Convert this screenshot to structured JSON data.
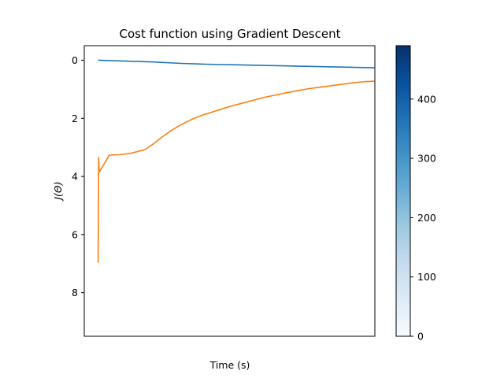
{
  "chart_data": {
    "type": "line",
    "title": "Cost function using Gradient Descent",
    "xlabel": "Time (s)",
    "ylabel": "J(Θ)",
    "y_axis_inverted": true,
    "ylim": [
      9.5,
      -0.5
    ],
    "yticks": [
      0,
      2,
      4,
      6,
      8
    ],
    "xticks": [],
    "xlim": [
      -25,
      500
    ],
    "grid": false,
    "legend": "none",
    "colors": {
      "series_1": "#1f77b4",
      "series_2": "#ff7f0e"
    },
    "series": [
      {
        "x": [
          0,
          50,
          100,
          150,
          200,
          250,
          300,
          350,
          400,
          450,
          499
        ],
        "values": [
          0.0,
          0.03,
          0.06,
          0.11,
          0.14,
          0.16,
          0.18,
          0.2,
          0.22,
          0.24,
          0.26
        ]
      },
      {
        "x": [
          0,
          1,
          2,
          10,
          20,
          40,
          60,
          70,
          85,
          100,
          115,
          130,
          145,
          160,
          170,
          180,
          190,
          200,
          220,
          240,
          260,
          280,
          300,
          320,
          340,
          360,
          380,
          400,
          420,
          440,
          460,
          480,
          499
        ],
        "values": [
          6.97,
          3.35,
          3.85,
          3.6,
          3.27,
          3.25,
          3.2,
          3.15,
          3.07,
          2.88,
          2.65,
          2.45,
          2.27,
          2.12,
          2.03,
          1.95,
          1.88,
          1.82,
          1.7,
          1.58,
          1.48,
          1.38,
          1.28,
          1.2,
          1.12,
          1.05,
          0.98,
          0.93,
          0.88,
          0.83,
          0.78,
          0.74,
          0.72
        ]
      }
    ]
  },
  "colorbar": {
    "colormap": "Blues",
    "range": [
      0,
      490
    ],
    "ticks": [
      0,
      100,
      200,
      300,
      400
    ]
  }
}
